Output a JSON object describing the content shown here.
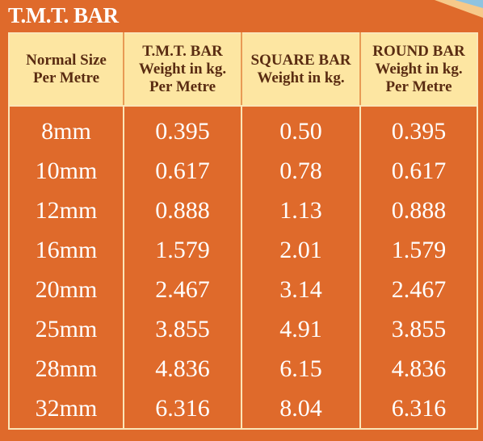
{
  "title": "T.M.T. BAR",
  "table": {
    "header": [
      [
        "Normal Size",
        "Per Metre"
      ],
      [
        "T.M.T. BAR",
        "Weight in kg.",
        "Per Metre"
      ],
      [
        "SQUARE BAR",
        "Weight in kg."
      ],
      [
        "ROUND BAR",
        "Weight in kg.",
        "Per Metre"
      ]
    ],
    "rows": [
      [
        "8mm",
        "0.395",
        "0.50",
        "0.395"
      ],
      [
        "10mm",
        "0.617",
        "0.78",
        "0.617"
      ],
      [
        "12mm",
        "0.888",
        "1.13",
        "0.888"
      ],
      [
        "16mm",
        "1.579",
        "2.01",
        "1.579"
      ],
      [
        "20mm",
        "2.467",
        "3.14",
        "2.467"
      ],
      [
        "25mm",
        "3.855",
        "4.91",
        "3.855"
      ],
      [
        "28mm",
        "4.836",
        "6.15",
        "4.836"
      ],
      [
        "32mm",
        "6.316",
        "8.04",
        "6.316"
      ]
    ]
  }
}
